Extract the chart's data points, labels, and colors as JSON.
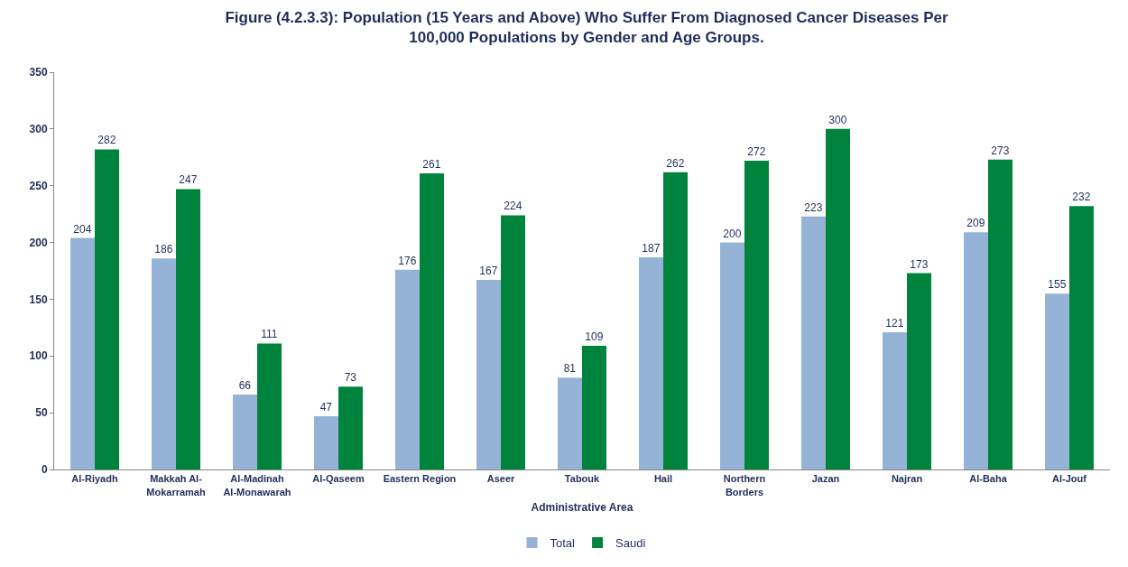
{
  "chart_data": {
    "type": "bar",
    "title": "Figure (4.2.3.3): Population (15 Years and Above) Who Suffer From Diagnosed Cancer Diseases Per 100,000 Populations by Gender and Age Groups.",
    "xlabel": "Administrative Area",
    "categories": [
      "Al-Riyadh",
      "Makkah Al-Mokarramah",
      "Al-Madinah Al-Monawarah",
      "Al-Qaseem",
      "Eastern Region",
      "Aseer",
      "Tabouk",
      "Hail",
      "Northern Borders",
      "Jazan",
      "Najran",
      "Al-Baha",
      "Al-Jouf"
    ],
    "series": [
      {
        "name": "Total",
        "color": "#95b3d7",
        "values": [
          204,
          186,
          66,
          47,
          176,
          167,
          81,
          187,
          200,
          223,
          121,
          209,
          155
        ]
      },
      {
        "name": "Saudi",
        "color": "#00843d",
        "values": [
          282,
          247,
          111,
          73,
          261,
          224,
          109,
          262,
          272,
          300,
          173,
          273,
          232
        ]
      }
    ],
    "ylim": [
      0,
      350
    ],
    "yticks": [
      0,
      50,
      100,
      150,
      200,
      250,
      300,
      350
    ],
    "data_labels": true,
    "legend": "bottom"
  }
}
